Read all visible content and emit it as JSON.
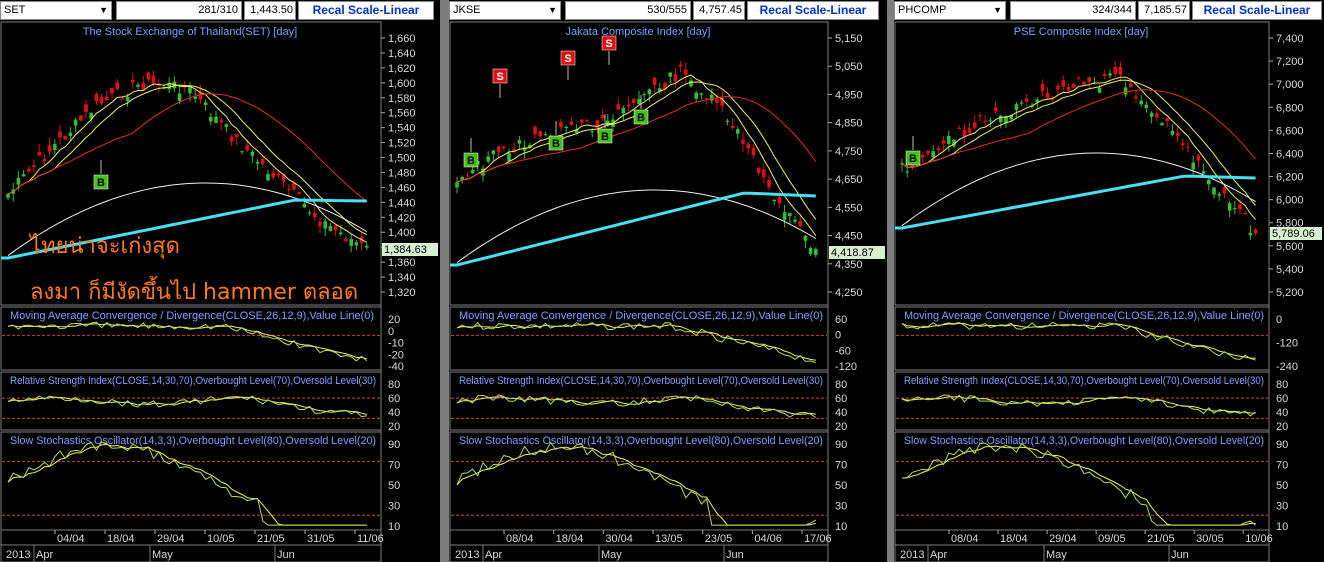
{
  "colors": {
    "ma_cyan": "#46e0f0",
    "ma_white": "#f0f0f0",
    "ma_red": "#e03020",
    "ma_yellow": "#f0f060",
    "candle_up": "#30c030",
    "candle_down": "#e01010",
    "signal_buy": "#46c014",
    "signal_sell": "#e01010",
    "text_blue": "#7da0ff",
    "overlay_orange": "#ff7a1a",
    "grid_red": "#c84646"
  },
  "overlay": {
    "line1": "ไทยน่าจะเก่งสุด",
    "line2": "ลงมา ก็มีงัดขึ้นไป hammer ตลอด"
  },
  "panels": [
    {
      "symbol": "SET",
      "counter": "281/310",
      "price": "1,443.50",
      "recal": "Recal Scale-Linear",
      "title": "The Stock Exchange of Thailand(SET) [day]",
      "last_price": "1,384.63",
      "price_axis": [
        "1,660",
        "1,640",
        "1,620",
        "1,600",
        "1,580",
        "1,560",
        "1,540",
        "1,520",
        "1,500",
        "1,480",
        "1,460",
        "1,440",
        "1,420",
        "1,400",
        "1,380",
        "1,360",
        "1,340",
        "1,320"
      ],
      "macd_title": "Moving Average Convergence / Divergence(CLOSE,26,12,9),Value Line(0)",
      "macd_axis": [
        "20",
        "0",
        "-10",
        "-20",
        "-40"
      ],
      "rsi_title": "Relative Strength Index(CLOSE,14,30,70),Overbought Level(70),Oversold Level(30)",
      "rsi_axis": [
        "80",
        "60",
        "40",
        "20"
      ],
      "stoch_title": "Slow Stochastics Oscillator(14,3,3),Overbought Level(80),Oversold Level(20)",
      "stoch_axis": [
        "90",
        "70",
        "50",
        "30",
        "10"
      ],
      "date_axis": [
        "04/04",
        "18/04",
        "29/04",
        "10/05",
        "21/05",
        "31/05",
        "11/06"
      ],
      "month_axis": [
        "2013",
        "Apr",
        "May",
        "Jun"
      ],
      "signals": [
        {
          "type": "B",
          "label": "B"
        }
      ]
    },
    {
      "symbol": "JKSE",
      "counter": "530/555",
      "price": "4,757.45",
      "recal": "Recal Scale-Linear",
      "title": "Jakata Composite Index [day]",
      "last_price": "4,418.87",
      "price_axis": [
        "5,150",
        "5,050",
        "4,950",
        "4,850",
        "4,750",
        "4,650",
        "4,550",
        "4,450",
        "4,350",
        "4,250"
      ],
      "macd_title": "Moving Average Convergence / Divergence(CLOSE,26,12,9),Value Line(0)",
      "macd_axis": [
        "60",
        "0",
        "-60",
        "-120"
      ],
      "rsi_title": "Relative Strength Index(CLOSE,14,30,70),Overbought Level(70),Oversold Level(30)",
      "rsi_axis": [
        "80",
        "60",
        "40",
        "20"
      ],
      "stoch_title": "Slow Stochastics Oscillator(14,3,3),Overbought Level(80),Oversold Level(20)",
      "stoch_axis": [
        "90",
        "70",
        "50",
        "30",
        "10"
      ],
      "date_axis": [
        "08/04",
        "18/04",
        "30/04",
        "13/05",
        "23/05",
        "04/06",
        "17/06"
      ],
      "month_axis": [
        "2013",
        "Apr",
        "May",
        "Jun"
      ],
      "signals": [
        {
          "type": "B",
          "label": "B"
        },
        {
          "type": "S",
          "label": "S"
        }
      ]
    },
    {
      "symbol": "PHCOMP",
      "counter": "324/344",
      "price": "7,185.57",
      "recal": "Recal Scale-Linear",
      "title": "PSE Composite Index [day]",
      "last_price": "5,789.06",
      "price_axis": [
        "7,400",
        "7,200",
        "7,000",
        "6,800",
        "6,600",
        "6,400",
        "6,200",
        "6,000",
        "5,800",
        "5,600",
        "5,400",
        "5,200"
      ],
      "macd_title": "Moving Average Convergence / Divergence(CLOSE,26,12,9),Value Line(0)",
      "macd_axis": [
        "0",
        "-120",
        "-240"
      ],
      "rsi_title": "Relative Strength Index(CLOSE,14,30,70),Overbought Level(70),Oversold Level(30)",
      "rsi_axis": [
        "80",
        "60",
        "40",
        "20"
      ],
      "stoch_title": "Slow Stochastics Oscillator(14,3,3),Overbought Level(80),Oversold Level(20)",
      "stoch_axis": [
        "90",
        "70",
        "50",
        "30",
        "10"
      ],
      "date_axis": [
        "08/04",
        "18/04",
        "29/04",
        "09/05",
        "21/05",
        "30/05",
        "10/06"
      ],
      "month_axis": [
        "2013",
        "Apr",
        "May",
        "Jun"
      ],
      "signals": [
        {
          "type": "B",
          "label": "B"
        }
      ]
    }
  ]
}
